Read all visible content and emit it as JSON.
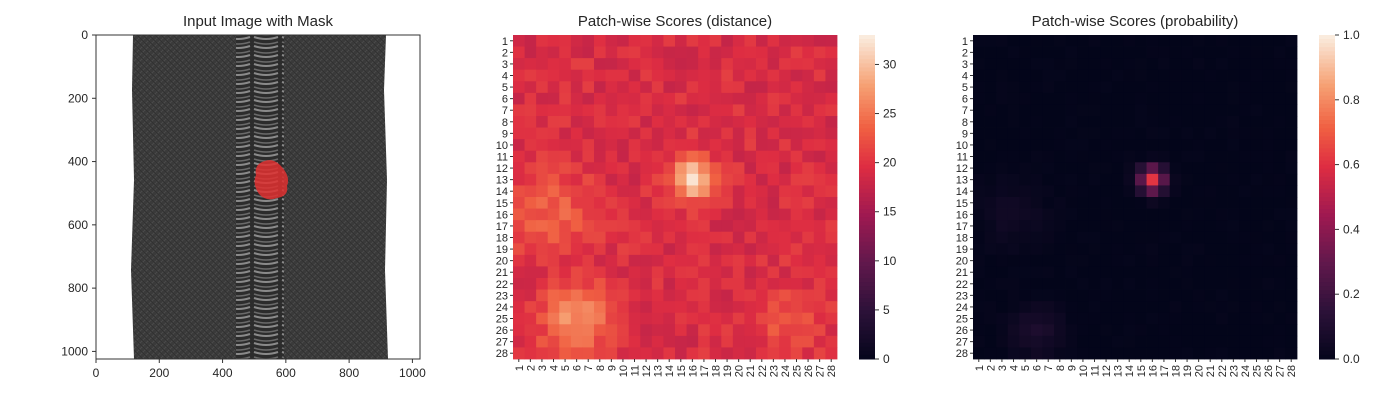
{
  "chart_data": [
    {
      "type": "image",
      "title": "Input Image with Mask",
      "xlabel": "",
      "ylabel": "",
      "xlim": [
        0,
        1024
      ],
      "ylim": [
        1024,
        0
      ],
      "xticks": [
        "0",
        "200",
        "400",
        "600",
        "800",
        "1000"
      ],
      "yticks": [
        "0",
        "200",
        "400",
        "600",
        "800",
        "1000"
      ],
      "tick_values": [
        0,
        200,
        400,
        600,
        800,
        1000
      ],
      "content": "zipper-image",
      "mask_color": "#e03030"
    },
    {
      "type": "heatmap",
      "title": "Patch-wise Scores (distance)",
      "xlabel": "",
      "ylabel": "",
      "rows": 28,
      "cols": 28,
      "row_labels": [
        "1",
        "2",
        "3",
        "4",
        "5",
        "6",
        "7",
        "8",
        "9",
        "10",
        "11",
        "12",
        "13",
        "14",
        "15",
        "16",
        "17",
        "18",
        "19",
        "20",
        "21",
        "22",
        "23",
        "24",
        "25",
        "26",
        "27",
        "28"
      ],
      "col_labels": [
        "1",
        "2",
        "3",
        "4",
        "5",
        "6",
        "7",
        "8",
        "9",
        "10",
        "11",
        "12",
        "13",
        "14",
        "15",
        "16",
        "17",
        "18",
        "19",
        "20",
        "21",
        "22",
        "23",
        "24",
        "25",
        "26",
        "27",
        "28"
      ],
      "colorbar": {
        "min": 0,
        "max": 33,
        "ticks": [
          "0",
          "5",
          "10",
          "15",
          "20",
          "25",
          "30"
        ],
        "tick_values": [
          0,
          5,
          10,
          15,
          20,
          25,
          30
        ],
        "colormap": "rocket"
      },
      "model": {
        "baseline": 19.5,
        "blobs": [
          {
            "row": 13,
            "col": 16,
            "peak": 33,
            "spread": 1.2
          },
          {
            "row": 25,
            "col": 6,
            "peak": 27,
            "spread": 2.2
          },
          {
            "row": 16,
            "col": 4,
            "peak": 24,
            "spread": 2.5
          },
          {
            "row": 25,
            "col": 24,
            "peak": 23,
            "spread": 2.0
          }
        ],
        "low_region": {
          "rows": [
            1,
            4
          ],
          "cols": [
            1,
            6
          ],
          "value": 16
        }
      }
    },
    {
      "type": "heatmap",
      "title": "Patch-wise Scores (probability)",
      "xlabel": "",
      "ylabel": "",
      "rows": 28,
      "cols": 28,
      "row_labels": [
        "1",
        "2",
        "3",
        "4",
        "5",
        "6",
        "7",
        "8",
        "9",
        "10",
        "11",
        "12",
        "13",
        "14",
        "15",
        "16",
        "17",
        "18",
        "19",
        "20",
        "21",
        "22",
        "23",
        "24",
        "25",
        "26",
        "27",
        "28"
      ],
      "col_labels": [
        "1",
        "2",
        "3",
        "4",
        "5",
        "6",
        "7",
        "8",
        "9",
        "10",
        "11",
        "12",
        "13",
        "14",
        "15",
        "16",
        "17",
        "18",
        "19",
        "20",
        "21",
        "22",
        "23",
        "24",
        "25",
        "26",
        "27",
        "28"
      ],
      "colorbar": {
        "min": 0,
        "max": 1,
        "ticks": [
          "0.0",
          "0.2",
          "0.4",
          "0.6",
          "0.8",
          "1.0"
        ],
        "tick_values": [
          0,
          0.2,
          0.4,
          0.6,
          0.8,
          1.0
        ],
        "colormap": "rocket"
      },
      "model": {
        "baseline": 0.0,
        "blobs": [
          {
            "row": 13,
            "col": 16,
            "peak": 0.62,
            "spread": 0.8
          },
          {
            "row": 26,
            "col": 6,
            "peak": 0.09,
            "spread": 1.6
          },
          {
            "row": 16,
            "col": 4,
            "peak": 0.05,
            "spread": 2.0
          }
        ]
      }
    }
  ]
}
